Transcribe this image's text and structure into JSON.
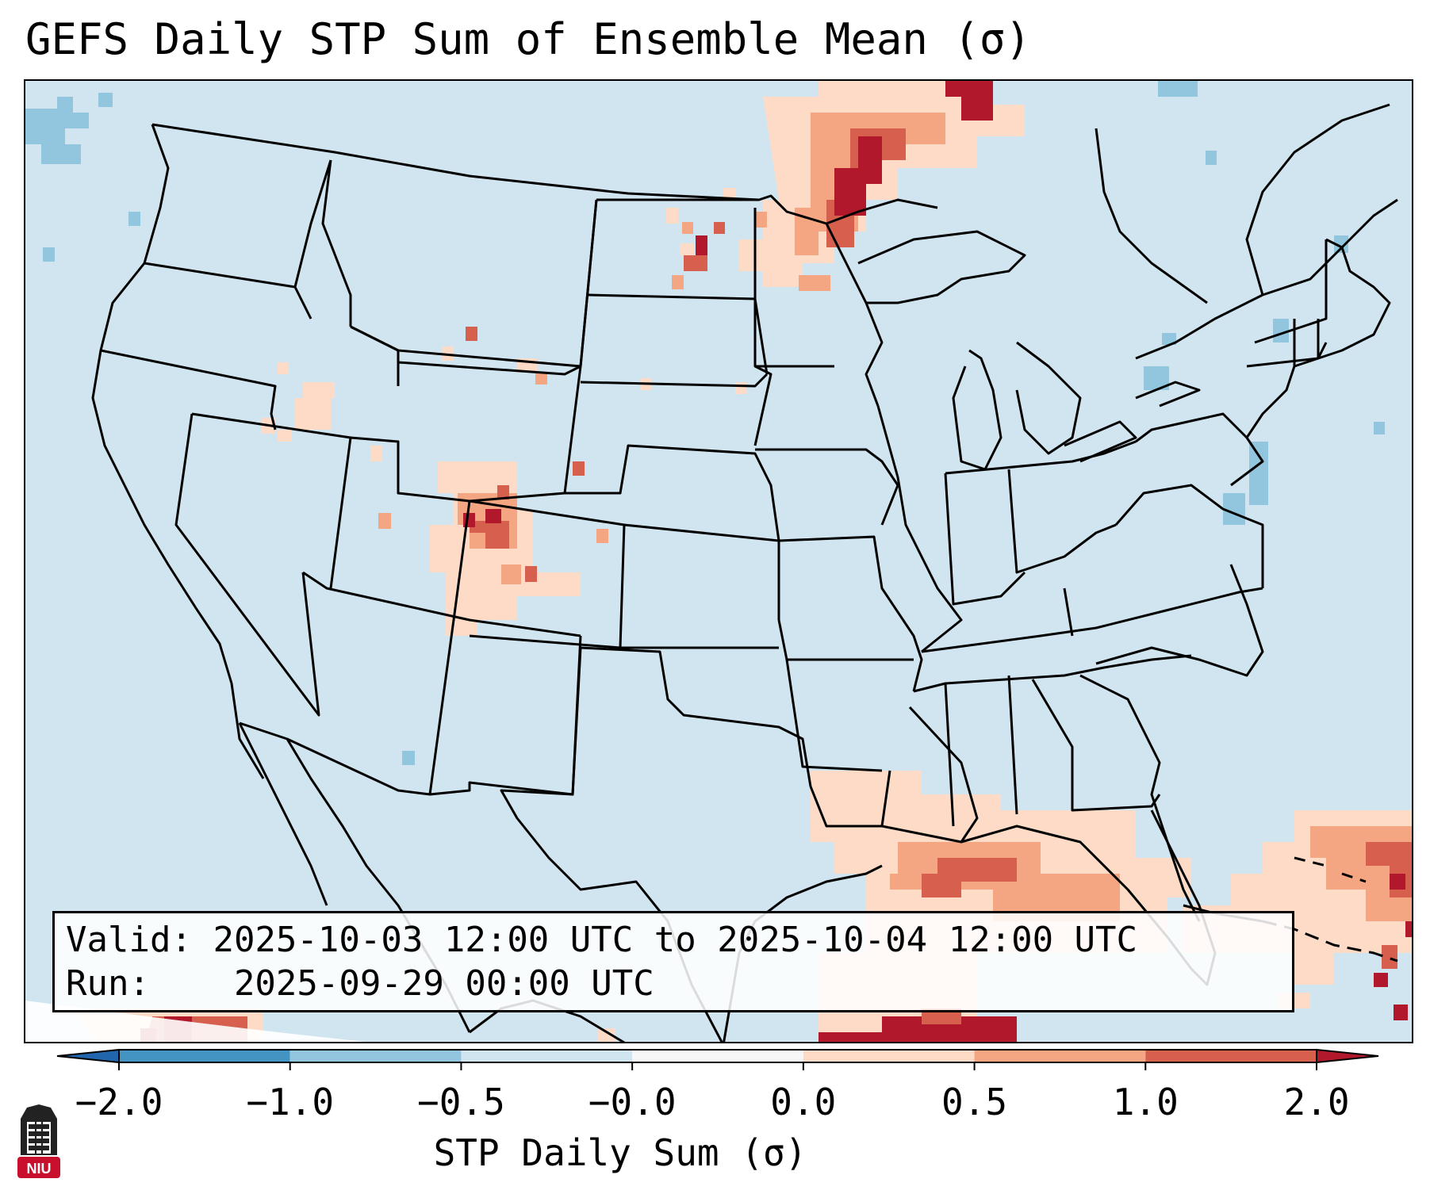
{
  "title": "GEFS Daily STP Sum of Ensemble Mean (σ)",
  "info_box": {
    "valid_label": "Valid:",
    "valid_value": "2025-10-03 12:00 UTC to 2025-10-04 12:00 UTC",
    "run_label": "Run:",
    "run_value": "2025-09-29 00:00 UTC"
  },
  "colorbar": {
    "title": "STP Daily Sum (σ)",
    "tick_labels": [
      "−2.0",
      "−1.0",
      "−0.5",
      "−0.0",
      "0.0",
      "0.5",
      "1.0",
      "2.0"
    ],
    "bins": [
      {
        "range": "<-2.0",
        "color": "#2166ac"
      },
      {
        "range": "-2.0 to -1.0",
        "color": "#4393c3"
      },
      {
        "range": "-1.0 to -0.5",
        "color": "#92c5de"
      },
      {
        "range": "-0.5 to -0.0",
        "color": "#d1e5f0"
      },
      {
        "range": "-0.0 to 0.0",
        "color": "#f7f7f7"
      },
      {
        "range": "0.0 to 0.5",
        "color": "#fddbc7"
      },
      {
        "range": "0.5 to 1.0",
        "color": "#f4a582"
      },
      {
        "range": "1.0 to 2.0",
        "color": "#d6604d"
      },
      {
        "range": ">2.0",
        "color": "#b2182b"
      }
    ]
  },
  "map": {
    "region": "Contiguous United States",
    "background_color": "#d1e5f0"
  },
  "logo": {
    "text": "NIU",
    "color": "#c8102e"
  }
}
